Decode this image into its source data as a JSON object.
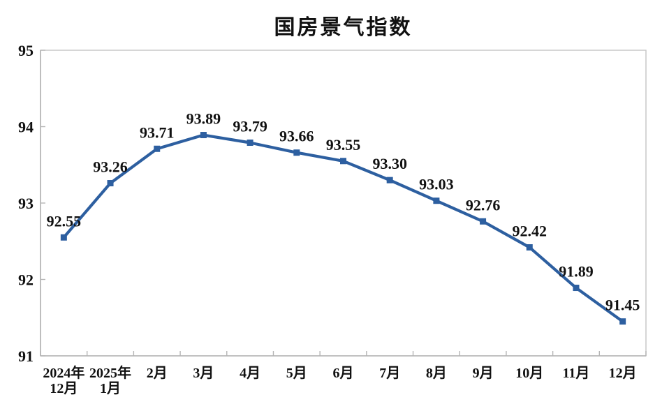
{
  "page": {
    "background": "#ffffff"
  },
  "chart": {
    "title": "国房景气指数"
  },
  "chart_data": {
    "type": "line",
    "title": "国房景气指数",
    "categories": [
      "2024年12月",
      "2025年1月",
      "2月",
      "3月",
      "4月",
      "5月",
      "6月",
      "7月",
      "8月",
      "9月",
      "10月",
      "11月",
      "12月"
    ],
    "category_label_lines": [
      [
        "2024年",
        "12月"
      ],
      [
        "2025年",
        "1月"
      ],
      [
        "2月"
      ],
      [
        "3月"
      ],
      [
        "4月"
      ],
      [
        "5月"
      ],
      [
        "6月"
      ],
      [
        "7月"
      ],
      [
        "8月"
      ],
      [
        "9月"
      ],
      [
        "10月"
      ],
      [
        "11月"
      ],
      [
        "12月"
      ]
    ],
    "values": [
      92.55,
      93.26,
      93.71,
      93.89,
      93.79,
      93.66,
      93.55,
      93.3,
      93.03,
      92.76,
      92.42,
      91.89,
      91.45
    ],
    "data_labels": [
      "92.55",
      "93.26",
      "93.71",
      "93.89",
      "93.79",
      "93.66",
      "93.55",
      "93.30",
      "93.03",
      "92.76",
      "92.42",
      "91.89",
      "91.45"
    ],
    "xlabel": "",
    "ylabel": "",
    "ylim": [
      91,
      95
    ],
    "yticks": [
      91,
      92,
      93,
      94,
      95
    ],
    "grid": false,
    "legend": false,
    "marker": "square",
    "colors": {
      "line": "#2D5FA0",
      "marker": "#2D5FA0",
      "label_text": "#111111",
      "tick_text": "#111111",
      "axis": "#b5b5b5",
      "border": "#c9c9c9",
      "background": "#ffffff"
    }
  }
}
